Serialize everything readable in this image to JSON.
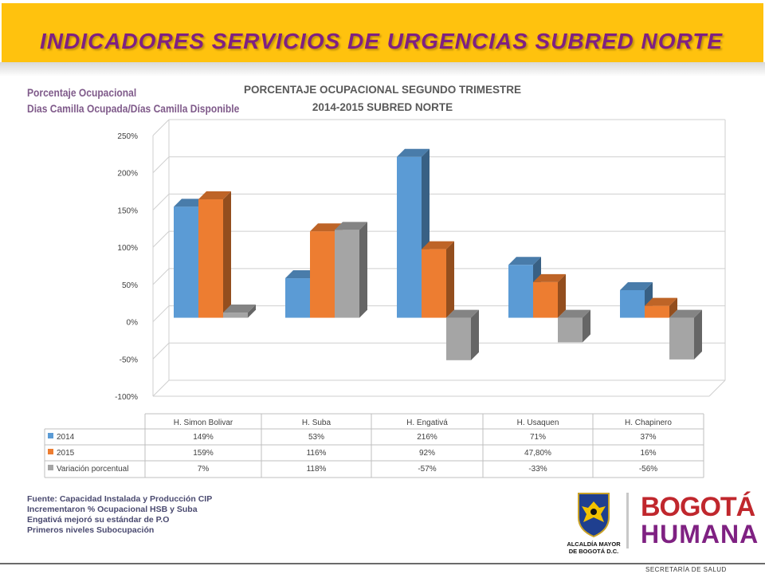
{
  "banner": {
    "title": "INDICADORES SERVICIOS DE URGENCIAS SUBRED NORTE"
  },
  "side_label": {
    "line1": "Porcentaje Ocupacional",
    "line2": "Dias Camilla Ocupada/Días Camilla Disponible"
  },
  "chart_data": {
    "type": "bar",
    "title_line1": "PORCENTAJE OCUPACIONAL SEGUNDO TRIMESTRE",
    "title_line2": "2014-2015 SUBRED NORTE",
    "categories": [
      "H. Simon Bolivar",
      "H. Suba",
      "H. Engativá",
      "H. Usaquen",
      "H. Chapinero"
    ],
    "series": [
      {
        "name": "2014",
        "values": [
          149,
          53,
          216,
          71,
          37
        ],
        "labels": [
          "149%",
          "53%",
          "216%",
          "71%",
          "37%"
        ],
        "color": "#5B9BD5"
      },
      {
        "name": "2015",
        "values": [
          159,
          116,
          92,
          47.8,
          16
        ],
        "labels": [
          "159%",
          "116%",
          "92%",
          "47,80%",
          "16%"
        ],
        "color": "#ED7D31"
      },
      {
        "name": "Variación porcentual",
        "values": [
          7,
          118,
          -57,
          -33,
          -56
        ],
        "labels": [
          "7%",
          "118%",
          "-57%",
          "-33%",
          "-56%"
        ],
        "color": "#A5A5A5"
      }
    ],
    "yticks": [
      "250%",
      "200%",
      "150%",
      "100%",
      "50%",
      "0%",
      "-50%",
      "-100%"
    ],
    "ylim": [
      -100,
      250
    ],
    "grid": true,
    "legend": "data-table"
  },
  "notes": {
    "line1": "Fuente: Capacidad Instalada y Producción  CIP",
    "line2": "Incrementaron % Ocupacional HSB y Suba",
    "line3": "Engativá mejoró su estándar de P.O",
    "line4": "Primeros niveles Subocupación"
  },
  "logo": {
    "line1": "ALCALDÍA MAYOR",
    "line2": "DE BOGOTÁ D.C."
  },
  "brand": {
    "top": "BOGOTÁ",
    "bottom": "HUMANA"
  },
  "footer": {
    "text": "SECRETARÍA DE SALUD"
  }
}
